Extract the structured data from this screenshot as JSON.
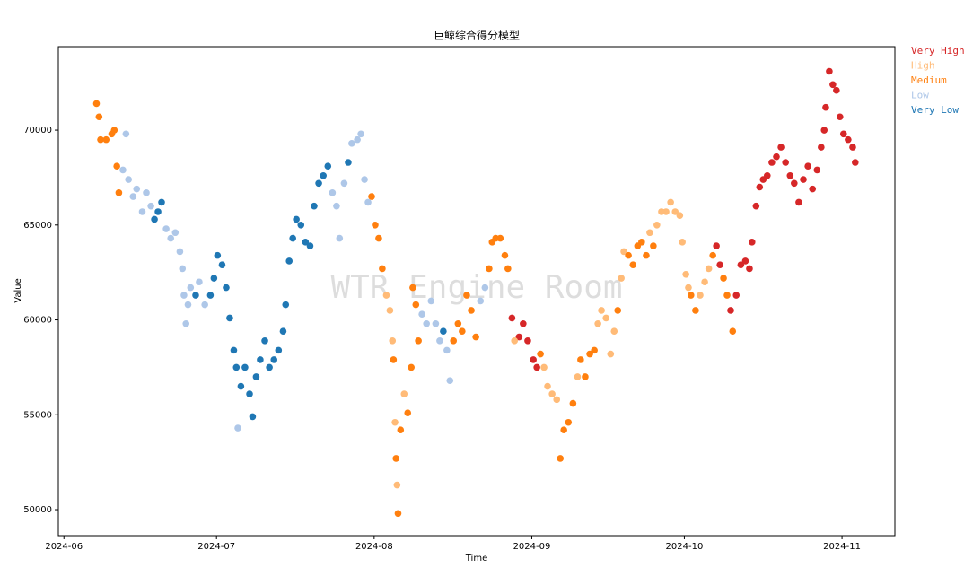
{
  "chart_data": {
    "type": "scatter",
    "title": "巨鲸综合得分模型",
    "x_label": "Time",
    "y_label": "Value",
    "annotation": "WTR Engine Room",
    "legend": "outside-right",
    "xlim": [
      -1.1,
      163.4
    ],
    "ylim": [
      48630,
      74400
    ],
    "xticks": [
      {
        "value": 0,
        "label": "2024-06"
      },
      {
        "value": 30,
        "label": "2024-07"
      },
      {
        "value": 61,
        "label": "2024-08"
      },
      {
        "value": 92,
        "label": "2024-09"
      },
      {
        "value": 122,
        "label": "2024-10"
      },
      {
        "value": 153,
        "label": "2024-11"
      }
    ],
    "yticks": [
      50000,
      55000,
      60000,
      65000,
      70000
    ],
    "series": [
      {
        "name": "Very High",
        "color": "#d62728",
        "x": [
          88.1,
          89.5,
          90.3,
          91.2,
          92.3,
          93.0,
          128.3,
          129.0,
          131.1,
          132.2,
          133.1,
          134.0,
          134.8,
          135.3,
          136.1,
          136.8,
          137.5,
          138.3,
          139.2,
          140.1,
          141.0,
          141.9,
          142.8,
          143.6,
          144.5,
          145.4,
          146.3,
          147.2,
          148.1,
          148.9,
          149.5,
          149.8,
          150.5,
          151.2,
          151.9,
          152.6,
          153.3,
          154.2,
          155.1,
          155.6
        ],
        "values": [
          60100,
          59100,
          59800,
          58900,
          57900,
          57500,
          63900,
          62900,
          60500,
          61300,
          62900,
          63100,
          62700,
          64100,
          66000,
          67000,
          67400,
          67600,
          68300,
          68600,
          69100,
          68300,
          67600,
          67200,
          66200,
          67400,
          68100,
          66900,
          67900,
          69100,
          70000,
          71200,
          73100,
          72400,
          72100,
          70700,
          69800,
          69500,
          69100,
          68300
        ]
      },
      {
        "name": "High",
        "color": "#ffbb78",
        "x": [
          63.4,
          64.1,
          64.6,
          65.1,
          65.5,
          66.9,
          88.6,
          94.4,
          95.1,
          96.0,
          96.9,
          101.0,
          105.0,
          105.7,
          106.6,
          107.5,
          108.2,
          109.6,
          110.1,
          115.2,
          116.6,
          117.5,
          118.4,
          119.3,
          120.2,
          121.1,
          121.6,
          122.3,
          122.8,
          125.1,
          126.0,
          126.8
        ],
        "values": [
          61300,
          60500,
          58900,
          54600,
          51300,
          56100,
          58900,
          57500,
          56500,
          56100,
          55800,
          57000,
          59800,
          60500,
          60100,
          58200,
          59400,
          62200,
          63600,
          64600,
          65000,
          65700,
          65700,
          66200,
          65700,
          65500,
          64100,
          62400,
          61700,
          61300,
          62000,
          62700
        ]
      },
      {
        "name": "Medium",
        "color": "#ff7f0e",
        "x": [
          6.4,
          6.9,
          7.2,
          8.3,
          9.4,
          9.9,
          10.4,
          10.8,
          60.5,
          61.2,
          61.9,
          62.6,
          64.8,
          65.3,
          65.7,
          66.2,
          67.6,
          68.3,
          68.6,
          69.2,
          69.7,
          76.6,
          77.5,
          78.3,
          79.2,
          80.1,
          81.0,
          83.6,
          84.2,
          84.9,
          85.8,
          86.7,
          87.3,
          93.7,
          97.6,
          98.3,
          99.2,
          100.1,
          101.6,
          102.5,
          103.4,
          104.3,
          108.9,
          111.0,
          111.9,
          112.8,
          113.6,
          114.5,
          115.9,
          123.3,
          124.2,
          127.6,
          129.7,
          130.4,
          131.5
        ],
        "values": [
          71400,
          70700,
          69500,
          69500,
          69800,
          70000,
          68100,
          66700,
          66500,
          65000,
          64300,
          62700,
          57900,
          52700,
          49800,
          54200,
          55100,
          57500,
          61700,
          60800,
          58900,
          58900,
          59800,
          59400,
          61300,
          60500,
          59100,
          62700,
          64100,
          64300,
          64300,
          63400,
          62700,
          58200,
          52700,
          54200,
          54600,
          55600,
          57900,
          57000,
          58200,
          58400,
          60500,
          63400,
          62900,
          63900,
          64100,
          63400,
          63900,
          61300,
          60500,
          63400,
          62200,
          61300,
          59400
        ]
      },
      {
        "name": "Low",
        "color": "#aec7e8",
        "x": [
          11.6,
          12.2,
          12.7,
          13.6,
          14.3,
          15.4,
          16.2,
          17.1,
          20.1,
          21.0,
          21.9,
          22.8,
          23.3,
          23.6,
          24.0,
          24.4,
          24.9,
          26.6,
          27.7,
          34.2,
          52.8,
          53.6,
          54.2,
          55.1,
          56.6,
          57.7,
          58.4,
          59.1,
          59.8,
          70.4,
          71.3,
          72.2,
          73.1,
          73.9,
          75.3,
          75.9,
          81.9,
          82.8
        ],
        "values": [
          67900,
          69800,
          67400,
          66500,
          66900,
          65700,
          66700,
          66000,
          64800,
          64300,
          64600,
          63600,
          62700,
          61300,
          59800,
          60800,
          61700,
          62000,
          60800,
          54300,
          66700,
          66000,
          64300,
          67200,
          69300,
          69500,
          69800,
          67400,
          66200,
          60300,
          59800,
          61000,
          59800,
          58900,
          58400,
          56800,
          61000,
          61700
        ]
      },
      {
        "name": "Very Low",
        "color": "#1f77b4",
        "x": [
          17.8,
          18.5,
          19.2,
          25.9,
          28.8,
          29.5,
          30.2,
          31.1,
          31.9,
          32.6,
          33.4,
          33.9,
          34.8,
          35.6,
          36.5,
          37.1,
          37.8,
          38.6,
          39.5,
          40.4,
          41.3,
          42.2,
          43.1,
          43.6,
          44.3,
          45.0,
          45.7,
          46.6,
          47.5,
          48.4,
          49.2,
          50.1,
          51.0,
          51.9,
          55.9,
          74.6
        ],
        "values": [
          65300,
          65700,
          66200,
          61300,
          61300,
          62200,
          63400,
          62900,
          61700,
          60100,
          58400,
          57500,
          56500,
          57500,
          56100,
          54900,
          57000,
          57900,
          58900,
          57500,
          57900,
          58400,
          59400,
          60800,
          63100,
          64300,
          65300,
          65000,
          64100,
          63900,
          66000,
          67200,
          67600,
          68100,
          68300,
          59400
        ]
      }
    ]
  }
}
